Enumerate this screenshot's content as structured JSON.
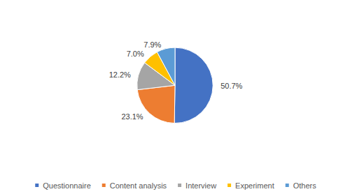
{
  "chart_data": {
    "type": "pie",
    "categories": [
      "Questionnaire",
      "Content analysis",
      "Interview",
      "Experiment",
      "Others"
    ],
    "values": [
      50.7,
      23.1,
      12.2,
      7.0,
      7.9
    ],
    "value_labels": [
      "50.7%",
      "23.1%",
      "12.2%",
      "7.0%",
      "7.9%"
    ],
    "colors": [
      "#4472c4",
      "#ed7d31",
      "#a5a5a5",
      "#ffc000",
      "#5b9bd5"
    ],
    "data_labels": true,
    "legend": "bottom"
  }
}
